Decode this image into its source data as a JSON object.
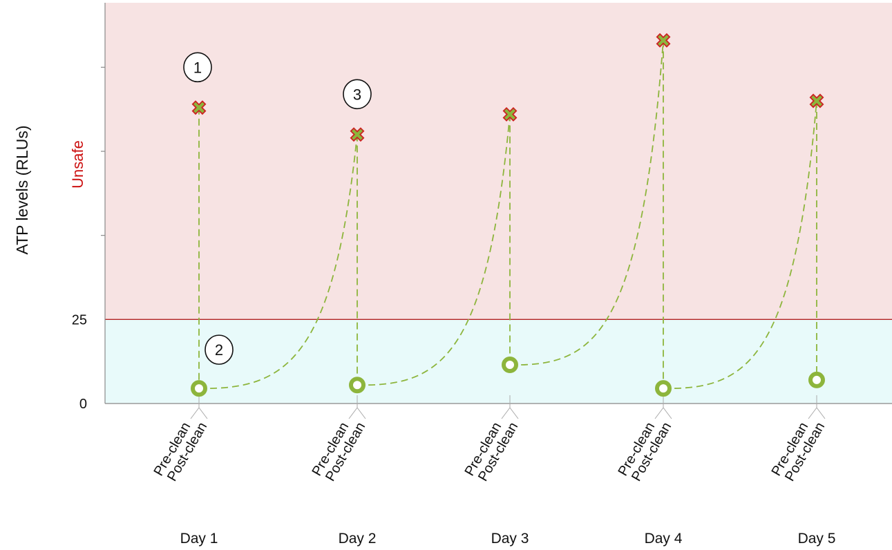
{
  "chart_data": {
    "type": "line",
    "title": "",
    "ylabel": "ATP levels (RLUs)",
    "xlabel": "",
    "ylim": [
      0,
      120
    ],
    "threshold": {
      "value": 25,
      "label": "25",
      "zone_label": "Unsafe"
    },
    "y_tick_labels": [
      {
        "value": 0,
        "label": "0"
      },
      {
        "value": 25,
        "label": "25"
      }
    ],
    "y_minor_ticks": [
      50,
      75,
      100
    ],
    "days": [
      "Day 1",
      "Day 2",
      "Day 3",
      "Day 4",
      "Day 5"
    ],
    "sub_labels": [
      "Pre-clean",
      "Post-clean"
    ],
    "series": [
      {
        "name": "Pre-clean",
        "marker": "x",
        "values": [
          88,
          80,
          86,
          108,
          90
        ]
      },
      {
        "name": "Post-clean",
        "marker": "ring",
        "values": [
          4.5,
          5.5,
          11.5,
          4.5,
          7
        ]
      }
    ],
    "annotations": [
      {
        "label": "1",
        "day_index": 0,
        "value": 100
      },
      {
        "label": "2",
        "day_index": 0,
        "value": 16
      },
      {
        "label": "3",
        "day_index": 1,
        "value": 92
      }
    ],
    "colors": {
      "unsafe_zone": "#f7e3e3",
      "safe_zone": "#e8fafa",
      "threshold_line": "#b22222",
      "unsafe_label": "#cc1111",
      "series_line": "#8db53c",
      "marker_fill": "#8db53c",
      "marker_outline": "#cc2222",
      "axis": "#888888"
    }
  }
}
